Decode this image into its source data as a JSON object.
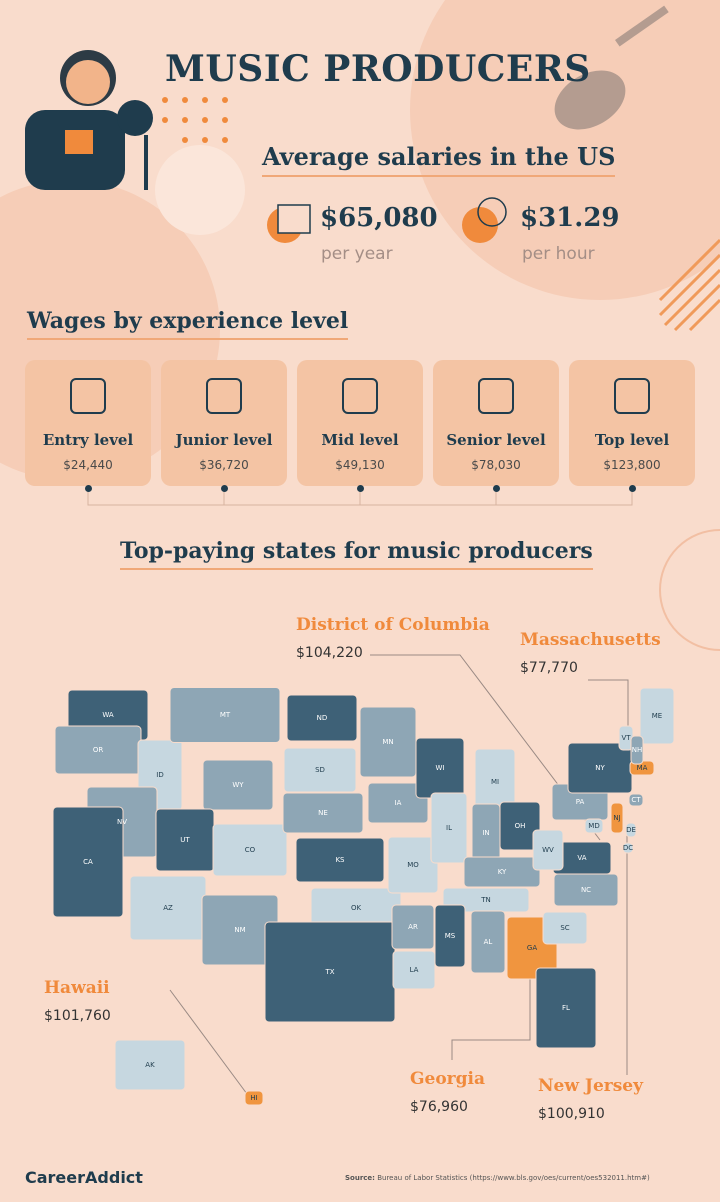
{
  "header": {
    "title": "MUSIC PRODUCERS",
    "subtitle": "Average salaries in the US"
  },
  "salaries": [
    {
      "value": "$65,080",
      "unit": "per year"
    },
    {
      "value": "$31.29",
      "unit": "per hour"
    }
  ],
  "experience": {
    "title": "Wages by experience level",
    "levels": [
      {
        "label": "Entry level",
        "wage": "$24,440"
      },
      {
        "label": "Junior level",
        "wage": "$36,720"
      },
      {
        "label": "Mid level",
        "wage": "$49,130"
      },
      {
        "label": "Senior level",
        "wage": "$78,030"
      },
      {
        "label": "Top level",
        "wage": "$123,800"
      }
    ]
  },
  "map": {
    "title": "Top-paying states for music producers",
    "callouts": [
      {
        "state": "District of Columbia",
        "wage": "$104,220"
      },
      {
        "state": "Massachusetts",
        "wage": "$77,770"
      },
      {
        "state": "Hawaii",
        "wage": "$101,760"
      },
      {
        "state": "Georgia",
        "wage": "$76,960"
      },
      {
        "state": "New Jersey",
        "wage": "$100,910"
      }
    ],
    "states": [
      "WA",
      "OR",
      "ID",
      "MT",
      "WY",
      "NV",
      "UT",
      "CO",
      "CA",
      "AZ",
      "NM",
      "ND",
      "SD",
      "NE",
      "KS",
      "OK",
      "TX",
      "MN",
      "IA",
      "MO",
      "AR",
      "LA",
      "WI",
      "IL",
      "MI",
      "IN",
      "OH",
      "KY",
      "TN",
      "MS",
      "AL",
      "GA",
      "FL",
      "SC",
      "NC",
      "VA",
      "WV",
      "PA",
      "NY",
      "ME",
      "AK",
      "HI",
      "MD",
      "DE",
      "NJ",
      "DC",
      "CT",
      "MA",
      "VT",
      "NH"
    ]
  },
  "footer": {
    "brand": "CareerAddict",
    "source_label": "Source:",
    "source": "Bureau of Labor Statistics (https://www.bls.gov/oes/current/oes532011.htm#)"
  }
}
